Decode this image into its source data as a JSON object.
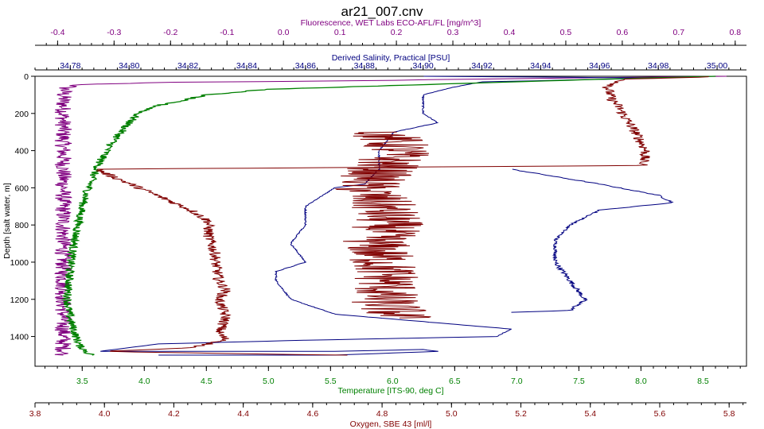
{
  "chart_data": {
    "type": "line",
    "title": "ar21_007.cnv",
    "y_axis": {
      "label": "Depth [salt water, m]",
      "range": [
        0,
        1560
      ],
      "ticks": [
        0,
        200,
        400,
        600,
        800,
        1000,
        1200,
        1400
      ],
      "inverted": true
    },
    "x_axes": [
      {
        "id": "fluorescence",
        "label": "Fluorescence, WET Labs ECO-AFL/FL [mg/m^3]",
        "position": "top",
        "color": "#800080",
        "range": [
          -0.44,
          0.82
        ],
        "ticks": [
          "-0.4",
          "-0.3",
          "-0.2",
          "-0.1",
          "0.0",
          "0.1",
          "0.2",
          "0.3",
          "0.4",
          "0.5",
          "0.6",
          "0.7",
          "0.8"
        ],
        "tick_values": [
          -0.4,
          -0.3,
          -0.2,
          -0.1,
          0.0,
          0.1,
          0.2,
          0.3,
          0.4,
          0.5,
          0.6,
          0.7,
          0.8
        ]
      },
      {
        "id": "salinity",
        "label": "Derived Salinity, Practical [PSU]",
        "position": "top",
        "color": "#000080",
        "range": [
          34.768,
          35.01
        ],
        "ticks": [
          "34.78",
          "34.80",
          "34.82",
          "34.84",
          "34.86",
          "34.88",
          "34.90",
          "34.92",
          "34.94",
          "34.96",
          "34.98",
          "35.00"
        ],
        "tick_values": [
          34.78,
          34.8,
          34.82,
          34.84,
          34.86,
          34.88,
          34.9,
          34.92,
          34.94,
          34.96,
          34.98,
          35.0
        ]
      },
      {
        "id": "temperature",
        "label": "Temperature [ITS-90, deg C]",
        "position": "bottom",
        "color": "#008000",
        "range": [
          3.12,
          8.85
        ],
        "ticks": [
          "3.5",
          "4.0",
          "4.5",
          "5.0",
          "5.5",
          "6.0",
          "6.5",
          "7.0",
          "7.5",
          "8.0",
          "8.5"
        ],
        "tick_values": [
          3.5,
          4.0,
          4.5,
          5.0,
          5.5,
          6.0,
          6.5,
          7.0,
          7.5,
          8.0,
          8.5
        ]
      },
      {
        "id": "oxygen",
        "label": "Oxygen, SBE 43 [ml/l]",
        "position": "bottom",
        "color": "#800000",
        "range": [
          3.8,
          5.85
        ],
        "ticks": [
          "3.8",
          "4.0",
          "4.2",
          "4.4",
          "4.6",
          "4.8",
          "5.0",
          "5.2",
          "5.4",
          "5.6",
          "5.8"
        ],
        "tick_values": [
          3.8,
          4.0,
          4.2,
          4.4,
          4.6,
          4.8,
          5.0,
          5.2,
          5.4,
          5.6,
          5.8
        ]
      }
    ],
    "series": [
      {
        "axis": "fluorescence",
        "color": "#800080",
        "width": 1,
        "noise": 0.012,
        "points": [
          [
            0.78,
            0
          ],
          [
            0.62,
            5
          ],
          [
            0.35,
            15
          ],
          [
            0.1,
            25
          ],
          [
            -0.2,
            32
          ],
          [
            -0.36,
            45
          ],
          [
            -0.385,
            60
          ],
          [
            -0.39,
            100
          ],
          [
            -0.39,
            400
          ],
          [
            -0.39,
            800
          ],
          [
            -0.39,
            1200
          ],
          [
            -0.39,
            1500
          ]
        ]
      },
      {
        "axis": "salinity",
        "color": "#000080",
        "width": 1,
        "noise": 0.0012,
        "points": [
          [
            34.9,
            0
          ],
          [
            34.95,
            5
          ],
          [
            34.98,
            10
          ],
          [
            34.92,
            30
          ],
          [
            34.91,
            60
          ],
          [
            34.9,
            100
          ],
          [
            34.9,
            150
          ],
          [
            34.9,
            200
          ],
          [
            34.905,
            250
          ],
          [
            34.89,
            300
          ],
          [
            34.885,
            400
          ],
          [
            34.885,
            500
          ],
          [
            34.88,
            580
          ],
          [
            34.87,
            600
          ],
          [
            34.865,
            650
          ],
          [
            34.86,
            700
          ],
          [
            34.86,
            800
          ],
          [
            34.855,
            900
          ],
          [
            34.86,
            1000
          ],
          [
            34.85,
            1050
          ],
          [
            34.85,
            1100
          ],
          [
            34.855,
            1200
          ],
          [
            34.87,
            1280
          ],
          [
            34.9,
            1320
          ],
          [
            34.93,
            1360
          ],
          [
            34.925,
            1400
          ],
          [
            34.86,
            1420
          ],
          [
            34.81,
            1440
          ],
          [
            34.8,
            1460
          ],
          [
            34.79,
            1480
          ],
          [
            34.87,
            1480
          ],
          [
            34.9,
            1470
          ],
          [
            34.905,
            1480
          ],
          [
            34.87,
            1500
          ],
          [
            34.81,
            1500
          ]
        ]
      },
      {
        "axis": "salinity",
        "color": "#000080",
        "width": 1,
        "noise": 0.004,
        "points": [
          [
            34.945,
            1000
          ],
          [
            34.95,
            1100
          ],
          [
            34.955,
            1200
          ],
          [
            34.95,
            1260
          ],
          [
            34.93,
            1270
          ]
        ]
      },
      {
        "axis": "salinity",
        "color": "#000080",
        "width": 1,
        "noise": 0.0025,
        "points": [
          [
            34.93,
            500
          ],
          [
            34.96,
            580
          ],
          [
            34.98,
            640
          ],
          [
            34.985,
            680
          ],
          [
            34.96,
            720
          ],
          [
            34.95,
            800
          ],
          [
            34.945,
            880
          ],
          [
            34.945,
            960
          ],
          [
            34.945,
            1000
          ]
        ]
      },
      {
        "axis": "temperature",
        "color": "#008000",
        "width": 1.3,
        "noise": 0.006,
        "points": [
          [
            8.6,
            0
          ],
          [
            8.0,
            10
          ],
          [
            6.0,
            50
          ],
          [
            5.0,
            70
          ],
          [
            4.5,
            100
          ],
          [
            4.1,
            160
          ],
          [
            3.95,
            200
          ],
          [
            3.85,
            270
          ],
          [
            3.75,
            350
          ],
          [
            3.65,
            450
          ],
          [
            3.6,
            520
          ],
          [
            3.55,
            600
          ],
          [
            3.5,
            700
          ],
          [
            3.45,
            850
          ],
          [
            3.42,
            950
          ],
          [
            3.4,
            1050
          ],
          [
            3.38,
            1200
          ],
          [
            3.4,
            1300
          ],
          [
            3.45,
            1400
          ],
          [
            3.48,
            1450
          ],
          [
            3.55,
            1490
          ],
          [
            3.58,
            1500
          ]
        ]
      },
      {
        "axis": "oxygen",
        "color": "#800000",
        "width": 1,
        "noise": 0.008,
        "points": [
          [
            5.75,
            0
          ],
          [
            5.72,
            5
          ],
          [
            5.5,
            15
          ],
          [
            5.45,
            60
          ],
          [
            5.46,
            120
          ],
          [
            5.48,
            160
          ],
          [
            5.5,
            220
          ],
          [
            5.53,
            300
          ],
          [
            5.56,
            400
          ],
          [
            5.55,
            480
          ],
          [
            3.98,
            500
          ],
          [
            4.0,
            520
          ],
          [
            4.05,
            560
          ],
          [
            4.1,
            600
          ],
          [
            4.2,
            680
          ],
          [
            4.25,
            720
          ],
          [
            4.3,
            780
          ],
          [
            4.3,
            860
          ],
          [
            4.32,
            960
          ],
          [
            4.32,
            1000
          ],
          [
            4.33,
            1100
          ],
          [
            4.35,
            1150
          ],
          [
            4.33,
            1200
          ],
          [
            4.35,
            1300
          ],
          [
            4.33,
            1380
          ],
          [
            4.35,
            1420
          ],
          [
            4.3,
            1440
          ],
          [
            4.25,
            1460
          ],
          [
            4.0,
            1480
          ],
          [
            4.3,
            1490
          ],
          [
            4.7,
            1500
          ]
        ]
      },
      {
        "axis": "oxygen",
        "color": "#800000",
        "width": 1,
        "noise": 0.05,
        "points": [
          [
            4.8,
            300
          ],
          [
            4.85,
            400
          ],
          [
            4.8,
            500
          ],
          [
            4.75,
            600
          ],
          [
            4.8,
            700
          ],
          [
            4.82,
            800
          ],
          [
            4.78,
            900
          ],
          [
            4.8,
            1000
          ],
          [
            4.82,
            1100
          ],
          [
            4.8,
            1200
          ],
          [
            4.85,
            1300
          ]
        ]
      }
    ]
  }
}
